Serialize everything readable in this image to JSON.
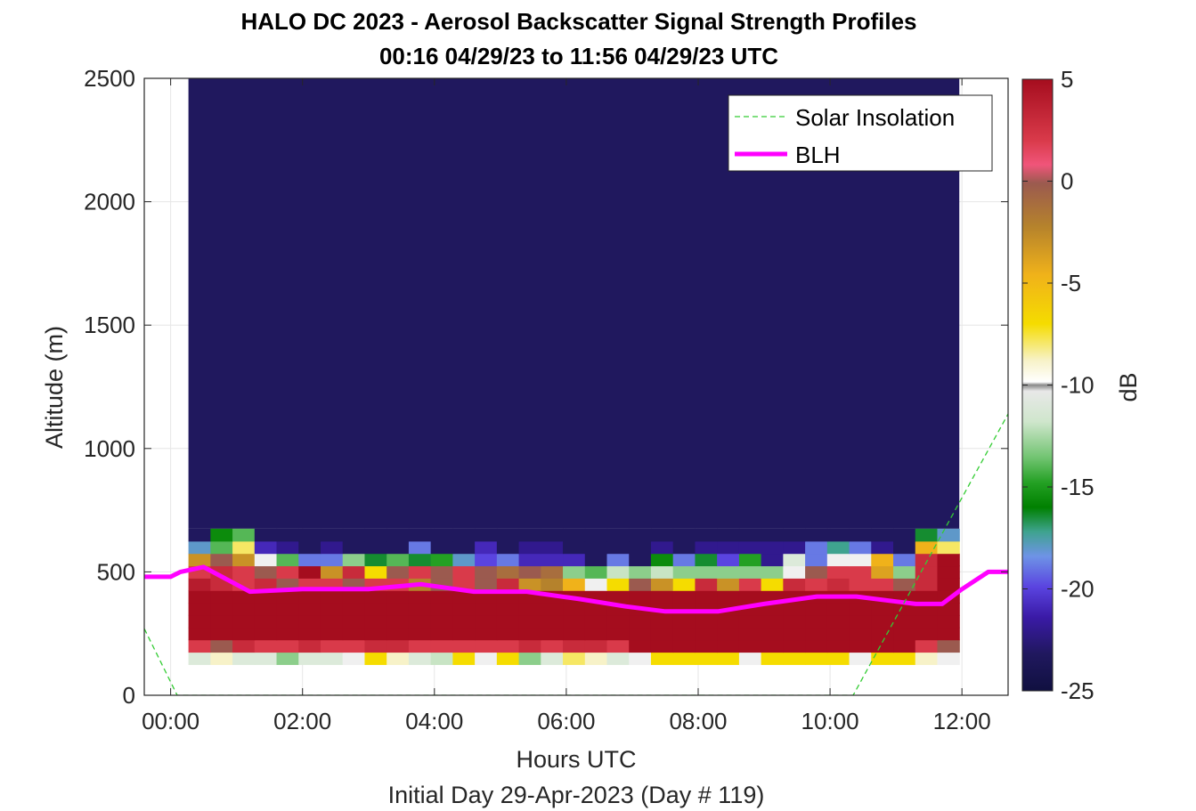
{
  "chart_data": {
    "type": "heatmap",
    "title": "HALO DC 2023 - Aerosol Backscatter Signal Strength Profiles",
    "subtitle": "00:16 04/29/23 to 11:56 04/29/23  UTC",
    "xlabel": "Hours UTC",
    "xlabel2": "Initial Day 29-Apr-2023 (Day # 119)",
    "ylabel": "Altitude (m)",
    "colorbar_label": "dB",
    "xlim": [
      -0.4,
      12.7
    ],
    "ylim": [
      0,
      2500
    ],
    "x_ticks": [
      0,
      2,
      4,
      6,
      8,
      10,
      12
    ],
    "x_tick_labels": [
      "00:00",
      "02:00",
      "04:00",
      "06:00",
      "08:00",
      "10:00",
      "12:00"
    ],
    "y_ticks": [
      0,
      500,
      1000,
      1500,
      2000,
      2500
    ],
    "y_tick_labels": [
      "0",
      "500",
      "1000",
      "1500",
      "2000",
      "2500"
    ],
    "clim": [
      -25,
      5
    ],
    "colorbar_ticks": [
      5,
      0,
      -5,
      -10,
      -15,
      -20,
      -25
    ],
    "colorbar_tick_labels": [
      "5",
      "0",
      "-5",
      "-10",
      "-15",
      "-20",
      "-25"
    ],
    "grid": true,
    "legend_position": "top-right",
    "legend": [
      "Solar Insolation",
      "BLH"
    ],
    "colors": {
      "blh": "#ff00ff",
      "solar": "#33cc33",
      "background": "#111145"
    },
    "heatmap": {
      "x_start": 0.27,
      "x_end": 11.96,
      "columns": 35,
      "row_height": 50,
      "row_bottoms": [
        125,
        175,
        225,
        275,
        325,
        375,
        425,
        475,
        525,
        575,
        625
      ],
      "upper_value": -24,
      "rows": [
        [
          -11,
          -9,
          -11,
          -11,
          -13,
          -11,
          -11,
          -10,
          -7,
          -9,
          -11,
          -12,
          -7,
          -10,
          -7,
          -13,
          -11,
          -8,
          -9,
          -11,
          -10,
          -7,
          -7,
          -7,
          -7,
          -10,
          -7,
          -7,
          -7,
          -7,
          -10,
          -7,
          -7,
          -9,
          -10
        ],
        [
          2,
          0,
          3,
          2,
          2,
          3,
          2,
          2,
          3,
          3,
          2,
          2,
          2,
          2,
          2,
          3,
          2,
          3,
          3,
          2,
          5,
          5,
          5,
          5,
          5,
          5,
          5,
          5,
          5,
          5,
          5,
          5,
          5,
          2,
          0
        ],
        [
          5,
          5,
          5,
          5,
          5,
          5,
          5,
          5,
          5,
          5,
          5,
          5,
          5,
          5,
          5,
          5,
          5,
          5,
          5,
          5,
          5,
          5,
          5,
          5,
          5,
          5,
          5,
          5,
          5,
          5,
          5,
          5,
          5,
          5,
          5
        ],
        [
          5,
          5,
          5,
          5,
          5,
          5,
          5,
          5,
          5,
          5,
          5,
          5,
          5,
          5,
          5,
          5,
          5,
          5,
          5,
          5,
          5,
          5,
          5,
          5,
          5,
          5,
          5,
          5,
          5,
          5,
          5,
          5,
          5,
          5,
          5
        ],
        [
          5,
          5,
          5,
          5,
          5,
          5,
          5,
          5,
          5,
          5,
          5,
          5,
          5,
          5,
          5,
          5,
          5,
          5,
          5,
          5,
          5,
          5,
          5,
          5,
          5,
          5,
          5,
          5,
          5,
          5,
          5,
          5,
          5,
          5,
          5
        ],
        [
          5,
          5,
          5,
          5,
          5,
          5,
          5,
          5,
          5,
          5,
          5,
          5,
          5,
          5,
          5,
          5,
          5,
          5,
          5,
          5,
          5,
          5,
          5,
          5,
          5,
          5,
          5,
          5,
          5,
          5,
          5,
          5,
          5,
          5,
          5
        ],
        [
          4,
          3,
          2,
          3,
          0,
          2,
          2,
          0,
          2,
          2,
          -2,
          0,
          2,
          0,
          3,
          -3,
          -2,
          -5,
          -10,
          -7,
          0,
          -3,
          -7,
          3,
          -3,
          2,
          -7,
          3,
          2,
          3,
          2,
          2,
          0,
          3,
          5
        ],
        [
          2,
          3,
          2,
          0,
          2,
          5,
          -3,
          3,
          -7,
          0,
          2,
          0,
          2,
          0,
          -1,
          0,
          -1,
          -13,
          -14,
          -12,
          -13,
          -12,
          -13,
          -13,
          -13,
          -13,
          -13,
          -10,
          0,
          2,
          2,
          -4,
          -13,
          3,
          5
        ],
        [
          -3,
          0,
          -3,
          -10,
          -14,
          -20,
          -20,
          -13,
          -17,
          -14,
          -17,
          -15,
          -19,
          -21,
          -20,
          -22,
          -22,
          -22,
          -24,
          -20,
          -24,
          -16,
          -20,
          -17,
          -21,
          -15,
          -23,
          -11,
          -20,
          -10,
          -10,
          -5,
          -20,
          3,
          5
        ],
        [
          -19,
          -14,
          -8,
          -22,
          -23,
          -24,
          -23,
          -24,
          -24,
          -24,
          -20,
          -24,
          -24,
          -22,
          -24,
          -23,
          -23,
          -24,
          -24,
          -24,
          -24,
          -23,
          -24,
          -23,
          -23,
          -23,
          -23,
          -23,
          -20,
          -18,
          -20,
          -23,
          -24,
          -5,
          -8
        ],
        [
          -24,
          -16,
          -14,
          -24,
          -24,
          -24,
          -24,
          -24,
          -24,
          -24,
          -24,
          -24,
          -24,
          -24,
          -24,
          -24,
          -24,
          -24,
          -24,
          -24,
          -24,
          -24,
          -24,
          -24,
          -24,
          -24,
          -24,
          -24,
          -24,
          -24,
          -24,
          -24,
          -24,
          -17,
          -19
        ]
      ]
    },
    "series": [
      {
        "name": "BLH",
        "x": [
          -0.4,
          0.0,
          0.15,
          0.5,
          1.2,
          2.0,
          3.0,
          3.8,
          4.6,
          5.4,
          6.2,
          6.9,
          7.5,
          8.3,
          9.0,
          9.8,
          10.4,
          11.0,
          11.3,
          11.7,
          12.0,
          12.4,
          12.7
        ],
        "y": [
          480,
          480,
          500,
          520,
          420,
          430,
          430,
          450,
          420,
          420,
          390,
          360,
          340,
          340,
          370,
          400,
          400,
          380,
          370,
          370,
          430,
          500,
          500
        ]
      },
      {
        "name": "Solar Insolation",
        "x": [
          -0.4,
          0.1,
          0.2,
          10.2,
          10.35,
          12.7
        ],
        "y": [
          270,
          0,
          0,
          0,
          0,
          1140
        ]
      }
    ]
  }
}
